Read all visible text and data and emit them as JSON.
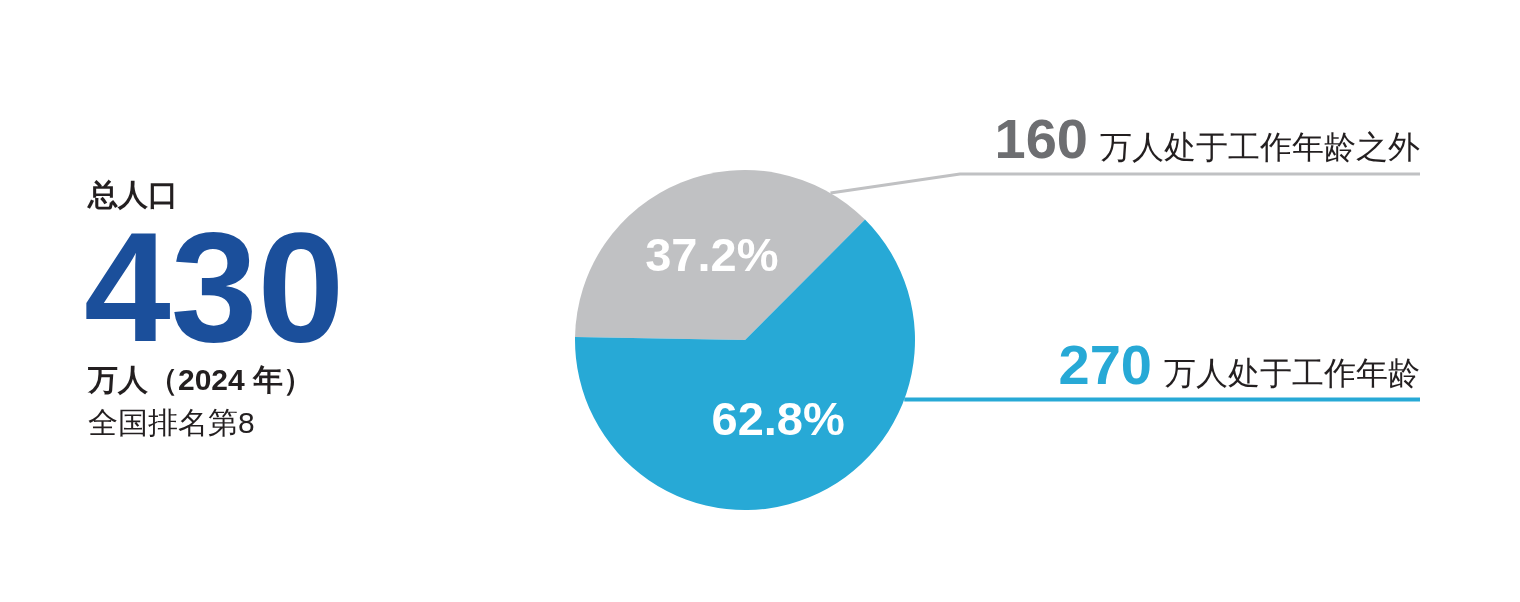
{
  "chart_data": {
    "type": "pie",
    "categories": [
      "万人处于工作年龄之外",
      "万人处于工作年龄"
    ],
    "values": [
      37.2,
      62.8
    ],
    "colors": [
      "#c0c1c3",
      "#27a9d6"
    ],
    "value_labels": [
      "37.2%",
      "62.8%"
    ],
    "annotations": [
      "总人口",
      "430",
      "万人（2024 年）",
      "全国排名第8",
      "160",
      "270"
    ]
  }
}
